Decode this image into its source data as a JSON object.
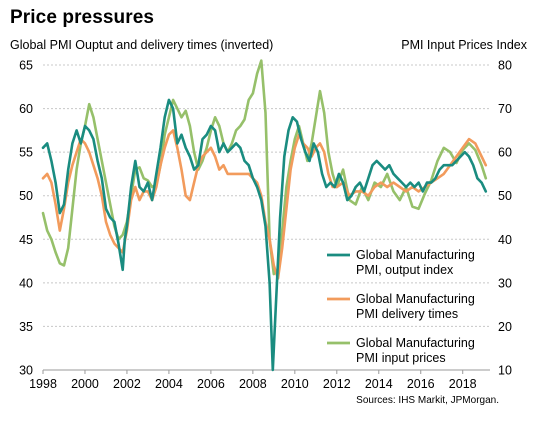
{
  "title": "Price pressures",
  "left_axis_label": "Global PMI Ouptut and delivery times (inverted)",
  "right_axis_label": "PMI Input Prices Index",
  "source": "Sources: IHS Markit, JPMorgan.",
  "chart_data": {
    "type": "line",
    "title": "Price pressures",
    "xlabel": "",
    "ylabel": "Global PMI Ouptut and delivery times (inverted)",
    "y2label": "PMI Input Prices Index",
    "xlim": [
      1998,
      2019.3
    ],
    "ylim": [
      30,
      65
    ],
    "y2lim": [
      10,
      80
    ],
    "x_ticks": [
      1998,
      2000,
      2002,
      2004,
      2006,
      2008,
      2010,
      2012,
      2014,
      2016,
      2018
    ],
    "y_ticks": [
      30,
      35,
      40,
      45,
      50,
      55,
      60,
      65
    ],
    "y2_ticks": [
      10,
      20,
      30,
      40,
      50,
      60,
      70,
      80
    ],
    "grid": true,
    "legend_position": "right-center",
    "series": [
      {
        "name": "Global Manufacturing PMI, output index",
        "color": "#1a8c80",
        "axis": "left",
        "x": [
          1998.0,
          1998.2,
          1998.4,
          1998.6,
          1998.8,
          1999.0,
          1999.2,
          1999.4,
          1999.6,
          1999.8,
          2000.0,
          2000.2,
          2000.4,
          2000.6,
          2000.8,
          2001.0,
          2001.2,
          2001.4,
          2001.6,
          2001.8,
          2001.9,
          2002.0,
          2002.2,
          2002.4,
          2002.6,
          2002.8,
          2003.0,
          2003.2,
          2003.4,
          2003.6,
          2003.8,
          2004.0,
          2004.2,
          2004.4,
          2004.6,
          2004.8,
          2005.0,
          2005.2,
          2005.4,
          2005.6,
          2005.8,
          2006.0,
          2006.2,
          2006.4,
          2006.6,
          2006.8,
          2007.0,
          2007.2,
          2007.4,
          2007.6,
          2007.8,
          2008.0,
          2008.2,
          2008.4,
          2008.6,
          2008.8,
          2008.95,
          2009.1,
          2009.3,
          2009.5,
          2009.7,
          2009.9,
          2010.1,
          2010.3,
          2010.5,
          2010.7,
          2010.9,
          2011.1,
          2011.3,
          2011.5,
          2011.7,
          2011.9,
          2012.1,
          2012.3,
          2012.5,
          2012.7,
          2012.9,
          2013.1,
          2013.3,
          2013.5,
          2013.7,
          2013.9,
          2014.1,
          2014.3,
          2014.5,
          2014.7,
          2014.9,
          2015.1,
          2015.3,
          2015.5,
          2015.7,
          2015.9,
          2016.1,
          2016.3,
          2016.5,
          2016.7,
          2016.9,
          2017.1,
          2017.3,
          2017.5,
          2017.7,
          2017.9,
          2018.1,
          2018.3,
          2018.5,
          2018.7,
          2018.9,
          2019.1
        ],
        "values": [
          55.5,
          56.0,
          54.0,
          51.5,
          48.0,
          49.0,
          53.0,
          56.0,
          57.5,
          56.0,
          58.0,
          57.5,
          56.5,
          54.0,
          52.0,
          48.5,
          47.5,
          47.0,
          44.5,
          41.5,
          45.0,
          46.5,
          51.0,
          54.0,
          51.0,
          50.5,
          51.5,
          49.5,
          52.5,
          55.5,
          59.0,
          61.0,
          60.0,
          56.0,
          57.0,
          55.5,
          54.5,
          53.0,
          53.5,
          56.5,
          57.0,
          58.0,
          57.5,
          55.0,
          56.0,
          55.0,
          55.5,
          56.0,
          55.5,
          54.0,
          53.5,
          52.0,
          51.0,
          49.5,
          46.5,
          40.0,
          30.0,
          37.5,
          47.5,
          54.5,
          57.5,
          59.0,
          58.5,
          56.5,
          55.0,
          54.0,
          56.0,
          55.0,
          52.5,
          51.0,
          51.5,
          51.0,
          52.5,
          51.5,
          49.5,
          50.0,
          51.0,
          51.5,
          50.5,
          52.0,
          53.5,
          54.0,
          53.5,
          53.0,
          53.5,
          52.5,
          52.0,
          51.5,
          51.0,
          51.5,
          51.0,
          51.5,
          50.5,
          51.5,
          51.5,
          52.0,
          53.0,
          53.5,
          53.5,
          53.5,
          54.0,
          54.5,
          55.0,
          54.5,
          53.5,
          52.0,
          51.5,
          50.5
        ]
      },
      {
        "name": "Global Manufacturing PMI delivery times",
        "color": "#f29b5c",
        "axis": "left",
        "x": [
          1998.0,
          1998.2,
          1998.4,
          1998.6,
          1998.8,
          1999.0,
          1999.2,
          1999.4,
          1999.6,
          1999.8,
          2000.0,
          2000.2,
          2000.4,
          2000.6,
          2000.8,
          2001.0,
          2001.2,
          2001.4,
          2001.6,
          2001.8,
          2002.0,
          2002.2,
          2002.4,
          2002.6,
          2002.8,
          2003.0,
          2003.2,
          2003.4,
          2003.6,
          2003.8,
          2004.0,
          2004.2,
          2004.4,
          2004.6,
          2004.8,
          2005.0,
          2005.2,
          2005.4,
          2005.6,
          2005.8,
          2006.0,
          2006.2,
          2006.4,
          2006.6,
          2006.8,
          2007.0,
          2007.2,
          2007.4,
          2007.6,
          2007.8,
          2008.0,
          2008.2,
          2008.4,
          2008.6,
          2008.8,
          2009.0,
          2009.2,
          2009.4,
          2009.6,
          2009.8,
          2010.0,
          2010.2,
          2010.4,
          2010.6,
          2010.8,
          2011.0,
          2011.2,
          2011.4,
          2011.6,
          2011.8,
          2012.0,
          2012.3,
          2012.6,
          2012.9,
          2013.2,
          2013.5,
          2013.8,
          2014.1,
          2014.4,
          2014.7,
          2015.0,
          2015.3,
          2015.6,
          2015.9,
          2016.2,
          2016.5,
          2016.8,
          2017.1,
          2017.4,
          2017.7,
          2018.0,
          2018.3,
          2018.6,
          2018.9,
          2019.1
        ],
        "values": [
          52.0,
          52.5,
          51.5,
          49.0,
          46.0,
          48.5,
          51.5,
          53.5,
          55.0,
          56.5,
          56.0,
          55.0,
          53.5,
          52.0,
          50.0,
          47.0,
          45.5,
          44.5,
          44.0,
          43.5,
          46.0,
          49.5,
          51.0,
          49.5,
          50.5,
          50.5,
          49.5,
          51.0,
          53.5,
          55.5,
          57.0,
          57.5,
          55.5,
          53.0,
          50.0,
          49.5,
          51.5,
          53.5,
          54.5,
          55.0,
          55.5,
          54.5,
          53.0,
          53.5,
          52.5,
          52.5,
          52.5,
          52.5,
          52.5,
          52.5,
          52.0,
          51.5,
          50.0,
          47.0,
          45.0,
          42.0,
          40.5,
          44.0,
          48.5,
          53.0,
          55.5,
          57.0,
          56.0,
          55.5,
          54.5,
          55.5,
          56.0,
          55.0,
          52.5,
          51.0,
          51.0,
          51.5,
          50.0,
          50.5,
          50.5,
          50.0,
          51.0,
          51.5,
          51.0,
          51.5,
          51.0,
          50.5,
          51.0,
          50.5,
          51.0,
          51.5,
          52.0,
          52.5,
          53.5,
          54.5,
          55.5,
          56.5,
          56.0,
          54.5,
          53.5
        ]
      },
      {
        "name": "Global Manufacturing PMI input prices",
        "color": "#96c06a",
        "axis": "right",
        "x": [
          1998.0,
          1998.2,
          1998.4,
          1998.6,
          1998.8,
          1999.0,
          1999.2,
          1999.4,
          1999.6,
          1999.8,
          2000.0,
          2000.2,
          2000.4,
          2000.6,
          2000.8,
          2001.0,
          2001.2,
          2001.4,
          2001.6,
          2001.8,
          2002.0,
          2002.2,
          2002.4,
          2002.6,
          2002.8,
          2003.0,
          2003.2,
          2003.4,
          2003.6,
          2003.8,
          2004.0,
          2004.2,
          2004.4,
          2004.6,
          2004.8,
          2005.0,
          2005.2,
          2005.4,
          2005.6,
          2005.8,
          2006.0,
          2006.2,
          2006.4,
          2006.6,
          2006.8,
          2007.0,
          2007.2,
          2007.4,
          2007.6,
          2007.8,
          2008.0,
          2008.2,
          2008.4,
          2008.6,
          2008.8,
          2009.0,
          2009.2,
          2009.4,
          2009.6,
          2009.8,
          2010.0,
          2010.2,
          2010.4,
          2010.6,
          2010.8,
          2011.0,
          2011.2,
          2011.4,
          2011.6,
          2011.8,
          2012.0,
          2012.3,
          2012.6,
          2012.9,
          2013.2,
          2013.5,
          2013.8,
          2014.1,
          2014.4,
          2014.7,
          2015.0,
          2015.3,
          2015.6,
          2015.9,
          2016.2,
          2016.5,
          2016.8,
          2017.1,
          2017.4,
          2017.7,
          2018.0,
          2018.3,
          2018.6,
          2018.9,
          2019.1
        ],
        "values": [
          46.0,
          42.0,
          40.0,
          37.0,
          34.5,
          34.0,
          38.0,
          47.0,
          56.0,
          62.0,
          66.0,
          71.0,
          68.0,
          63.0,
          58.0,
          53.0,
          48.0,
          43.0,
          40.0,
          41.0,
          44.0,
          50.0,
          56.0,
          56.5,
          54.0,
          53.5,
          52.0,
          52.5,
          57.0,
          64.0,
          68.0,
          72.0,
          70.0,
          68.0,
          69.5,
          66.0,
          60.0,
          56.0,
          58.0,
          61.0,
          65.0,
          68.0,
          66.0,
          62.0,
          60.0,
          62.0,
          65.0,
          66.0,
          67.5,
          72.0,
          73.5,
          78.0,
          81.0,
          69.0,
          40.0,
          32.0,
          33.0,
          42.0,
          52.0,
          58.0,
          63.0,
          66.0,
          62.0,
          58.0,
          62.0,
          68.0,
          74.0,
          69.0,
          60.0,
          55.0,
          52.0,
          56.0,
          49.0,
          48.0,
          52.0,
          49.0,
          53.0,
          52.0,
          55.0,
          51.0,
          49.0,
          52.0,
          47.5,
          47.0,
          50.5,
          53.5,
          58.0,
          61.0,
          60.0,
          57.5,
          60.5,
          62.0,
          60.5,
          57.0,
          54.0
        ]
      }
    ]
  }
}
